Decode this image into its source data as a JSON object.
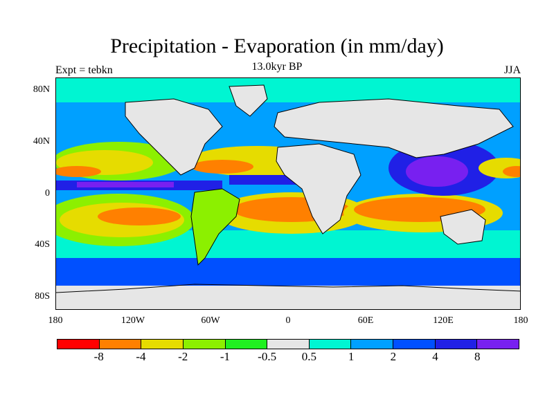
{
  "title": "Precipitation - Evaporation (in mm/day)",
  "subtitle": "13.0kyr BP",
  "left_label": "Expt = tebkn",
  "right_label": "JJA",
  "y_ticks": [
    "80N",
    "40N",
    "0",
    "40S",
    "80S"
  ],
  "x_ticks": [
    "180",
    "120W",
    "60W",
    "0",
    "60E",
    "120E",
    "180"
  ],
  "colorbar": {
    "colors": [
      "#ff0000",
      "#ff8000",
      "#e6dc00",
      "#8cf000",
      "#20f020",
      "#e6e6e6",
      "#00f5d2",
      "#00a0ff",
      "#0050ff",
      "#2020e6",
      "#7820f0"
    ],
    "labels": [
      "-8",
      "-4",
      "-2",
      "-1",
      "-0.5",
      "0.5",
      "1",
      "2",
      "4",
      "8"
    ]
  },
  "palette": {
    "land_dry": "#e6e6e6",
    "ocean_base": "#00a0ff"
  }
}
